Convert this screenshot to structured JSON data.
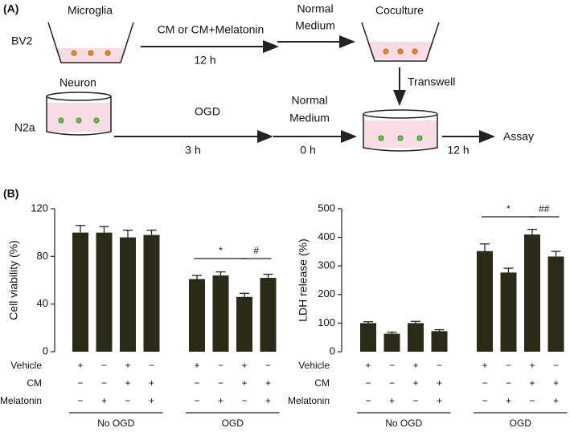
{
  "diagram": {
    "panel_a": "(A)",
    "microglia": "Microglia",
    "bv2": "BV2",
    "cm_label": "CM or CM+Melatonin",
    "time1": "12 h",
    "normal1": [
      "Normal",
      "Medium"
    ],
    "coculture": "Coculture",
    "transwell": "Transwell",
    "neuron": "Neuron",
    "n2a": "N2a",
    "ogd": "OGD",
    "time2": "3 h",
    "normal2": [
      "Normal",
      "Medium"
    ],
    "time3": "0 h",
    "time4": "12 h",
    "assay": "Assay",
    "panel_b": "(B)"
  },
  "chart_data": [
    {
      "type": "bar",
      "y_label": "Cell viability (%)",
      "ylim": [
        0,
        120
      ],
      "yticks": [
        0,
        40,
        80,
        120
      ],
      "color": "#2b2a16",
      "values": [
        100,
        100,
        96,
        98,
        61,
        64,
        46,
        62
      ],
      "errors": [
        6,
        5,
        6,
        4,
        3,
        3,
        3,
        3
      ],
      "conditions": [
        {
          "label": "Vehicle",
          "signs": [
            "+",
            "−",
            "+",
            "−",
            "+",
            "−",
            "+",
            "−"
          ]
        },
        {
          "label": "CM",
          "signs": [
            "−",
            "−",
            "+",
            "+",
            "−",
            "−",
            "+",
            "+"
          ]
        },
        {
          "label": "Melatonin",
          "signs": [
            "−",
            "+",
            "−",
            "+",
            "−",
            "+",
            "−",
            "+"
          ]
        }
      ],
      "groups": [
        "No OGD",
        "OGD"
      ],
      "annotations": [
        "*",
        "#"
      ]
    },
    {
      "type": "bar",
      "y_label": "LDH release (%)",
      "ylim": [
        0,
        500
      ],
      "yticks": [
        0,
        100,
        200,
        300,
        400,
        500
      ],
      "color": "#2b2a16",
      "values": [
        100,
        63,
        100,
        72,
        352,
        277,
        410,
        333
      ],
      "errors": [
        5,
        5,
        6,
        5,
        25,
        15,
        18,
        18
      ],
      "conditions": [
        {
          "label": "Vehicle",
          "signs": [
            "+",
            "−",
            "+",
            "−",
            "+",
            "−",
            "+",
            "−"
          ]
        },
        {
          "label": "CM",
          "signs": [
            "−",
            "−",
            "+",
            "+",
            "−",
            "−",
            "+",
            "+"
          ]
        },
        {
          "label": "Melatonin",
          "signs": [
            "−",
            "+",
            "−",
            "+",
            "−",
            "+",
            "−",
            "+"
          ]
        }
      ],
      "groups": [
        "No OGD",
        "OGD"
      ],
      "annotations": [
        "*",
        "##"
      ]
    }
  ]
}
